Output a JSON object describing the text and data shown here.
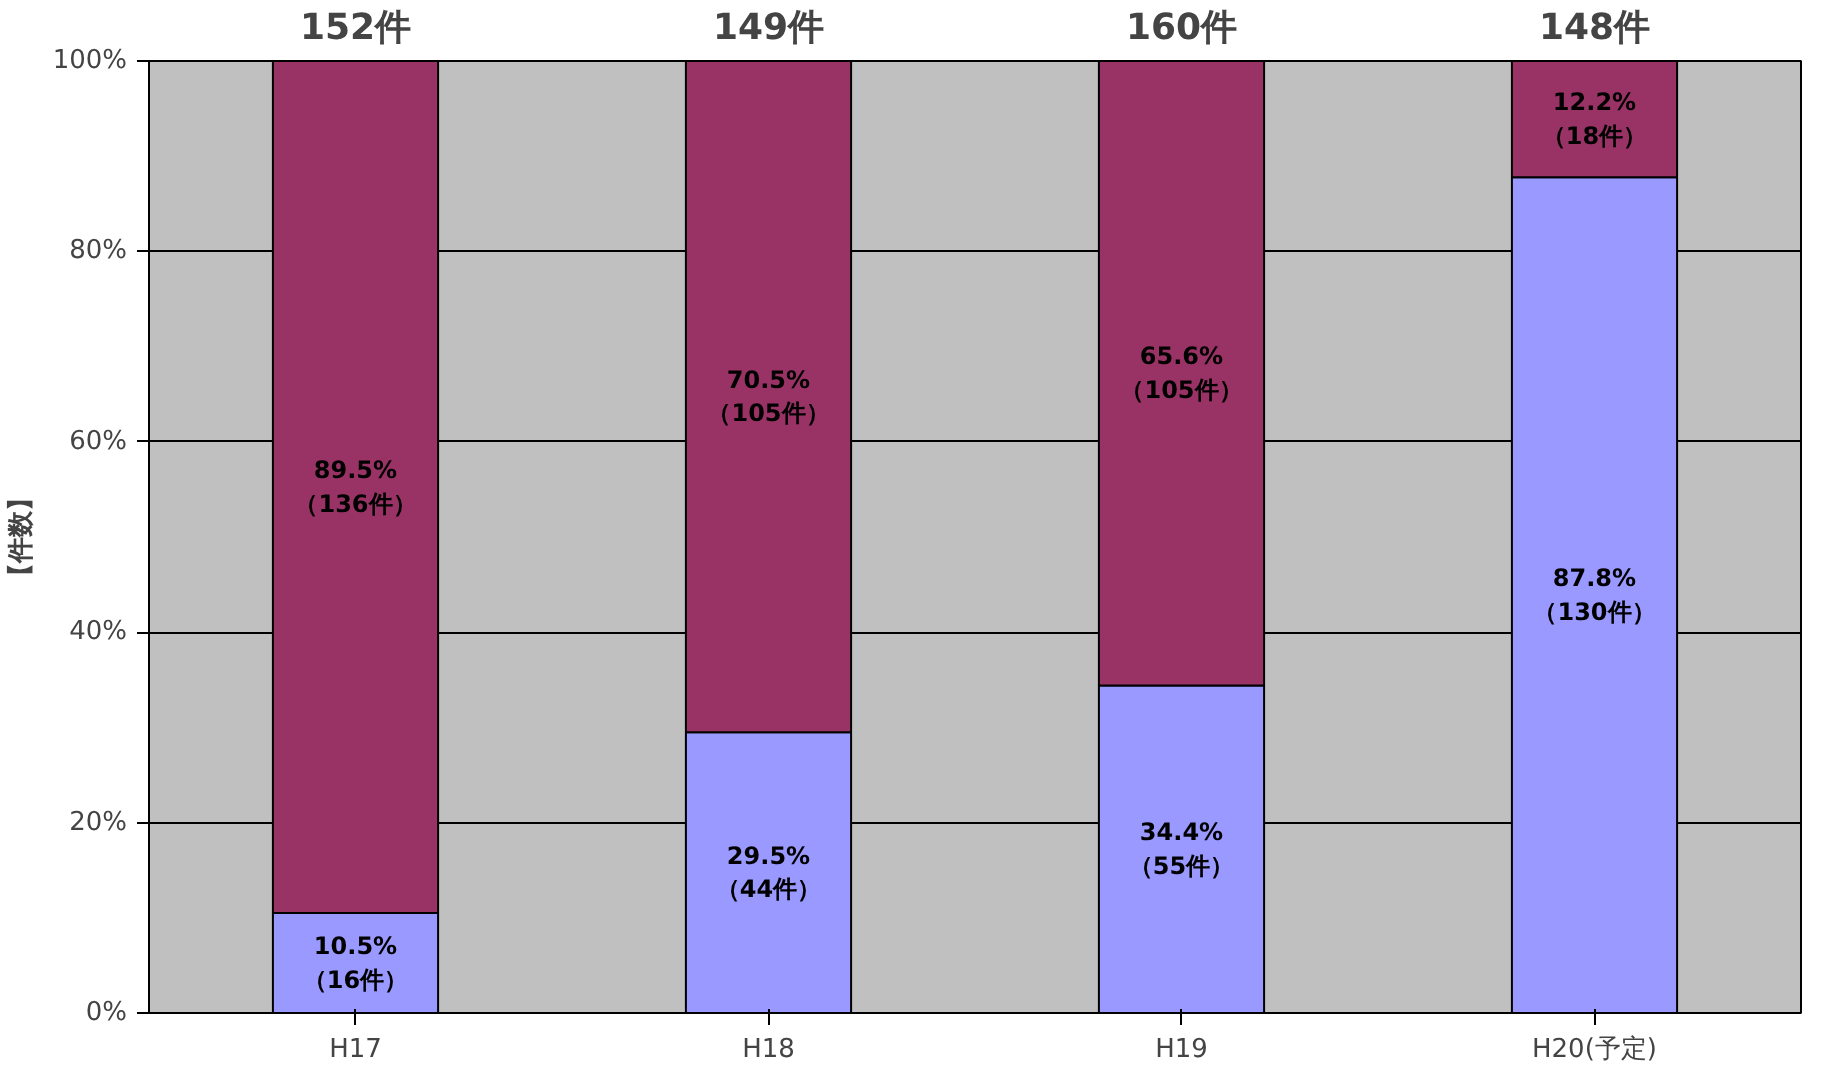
{
  "chart_data": {
    "type": "bar",
    "stacked": true,
    "ylabel": "【件数】",
    "categories": [
      "H17",
      "H18",
      "H19",
      "H20(予定)"
    ],
    "series": [
      {
        "color": "#9999ff",
        "values": [
          10.5,
          29.5,
          34.4,
          87.8
        ],
        "value_labels": [
          "10.5%\n（16件）",
          "29.5%\n（44件）",
          "34.4%\n（55件）",
          "87.8%\n（130件）"
        ]
      },
      {
        "color": "#993366",
        "values": [
          89.5,
          70.5,
          65.6,
          12.2
        ],
        "value_labels": [
          "89.5%\n（136件）",
          "70.5%\n（105件）",
          "65.6%\n（105件）",
          "12.2%\n（18件）"
        ]
      }
    ],
    "annotations": [
      {
        "text": "152件",
        "x": "H17",
        "y": 100
      },
      {
        "text": "149件",
        "x": "H18",
        "y": 100
      },
      {
        "text": "160件",
        "x": "H19",
        "y": 100
      },
      {
        "text": "148件",
        "x": "H20(予定)",
        "y": 100
      }
    ],
    "ylim": [
      0,
      100
    ],
    "yticks": [
      {
        "value": 0,
        "label": "0%"
      },
      {
        "value": 20,
        "label": "20%"
      },
      {
        "value": 40,
        "label": "40%"
      },
      {
        "value": 60,
        "label": "60%"
      },
      {
        "value": 80,
        "label": "80%"
      },
      {
        "value": 100,
        "label": "100%"
      }
    ],
    "grid": "y"
  }
}
